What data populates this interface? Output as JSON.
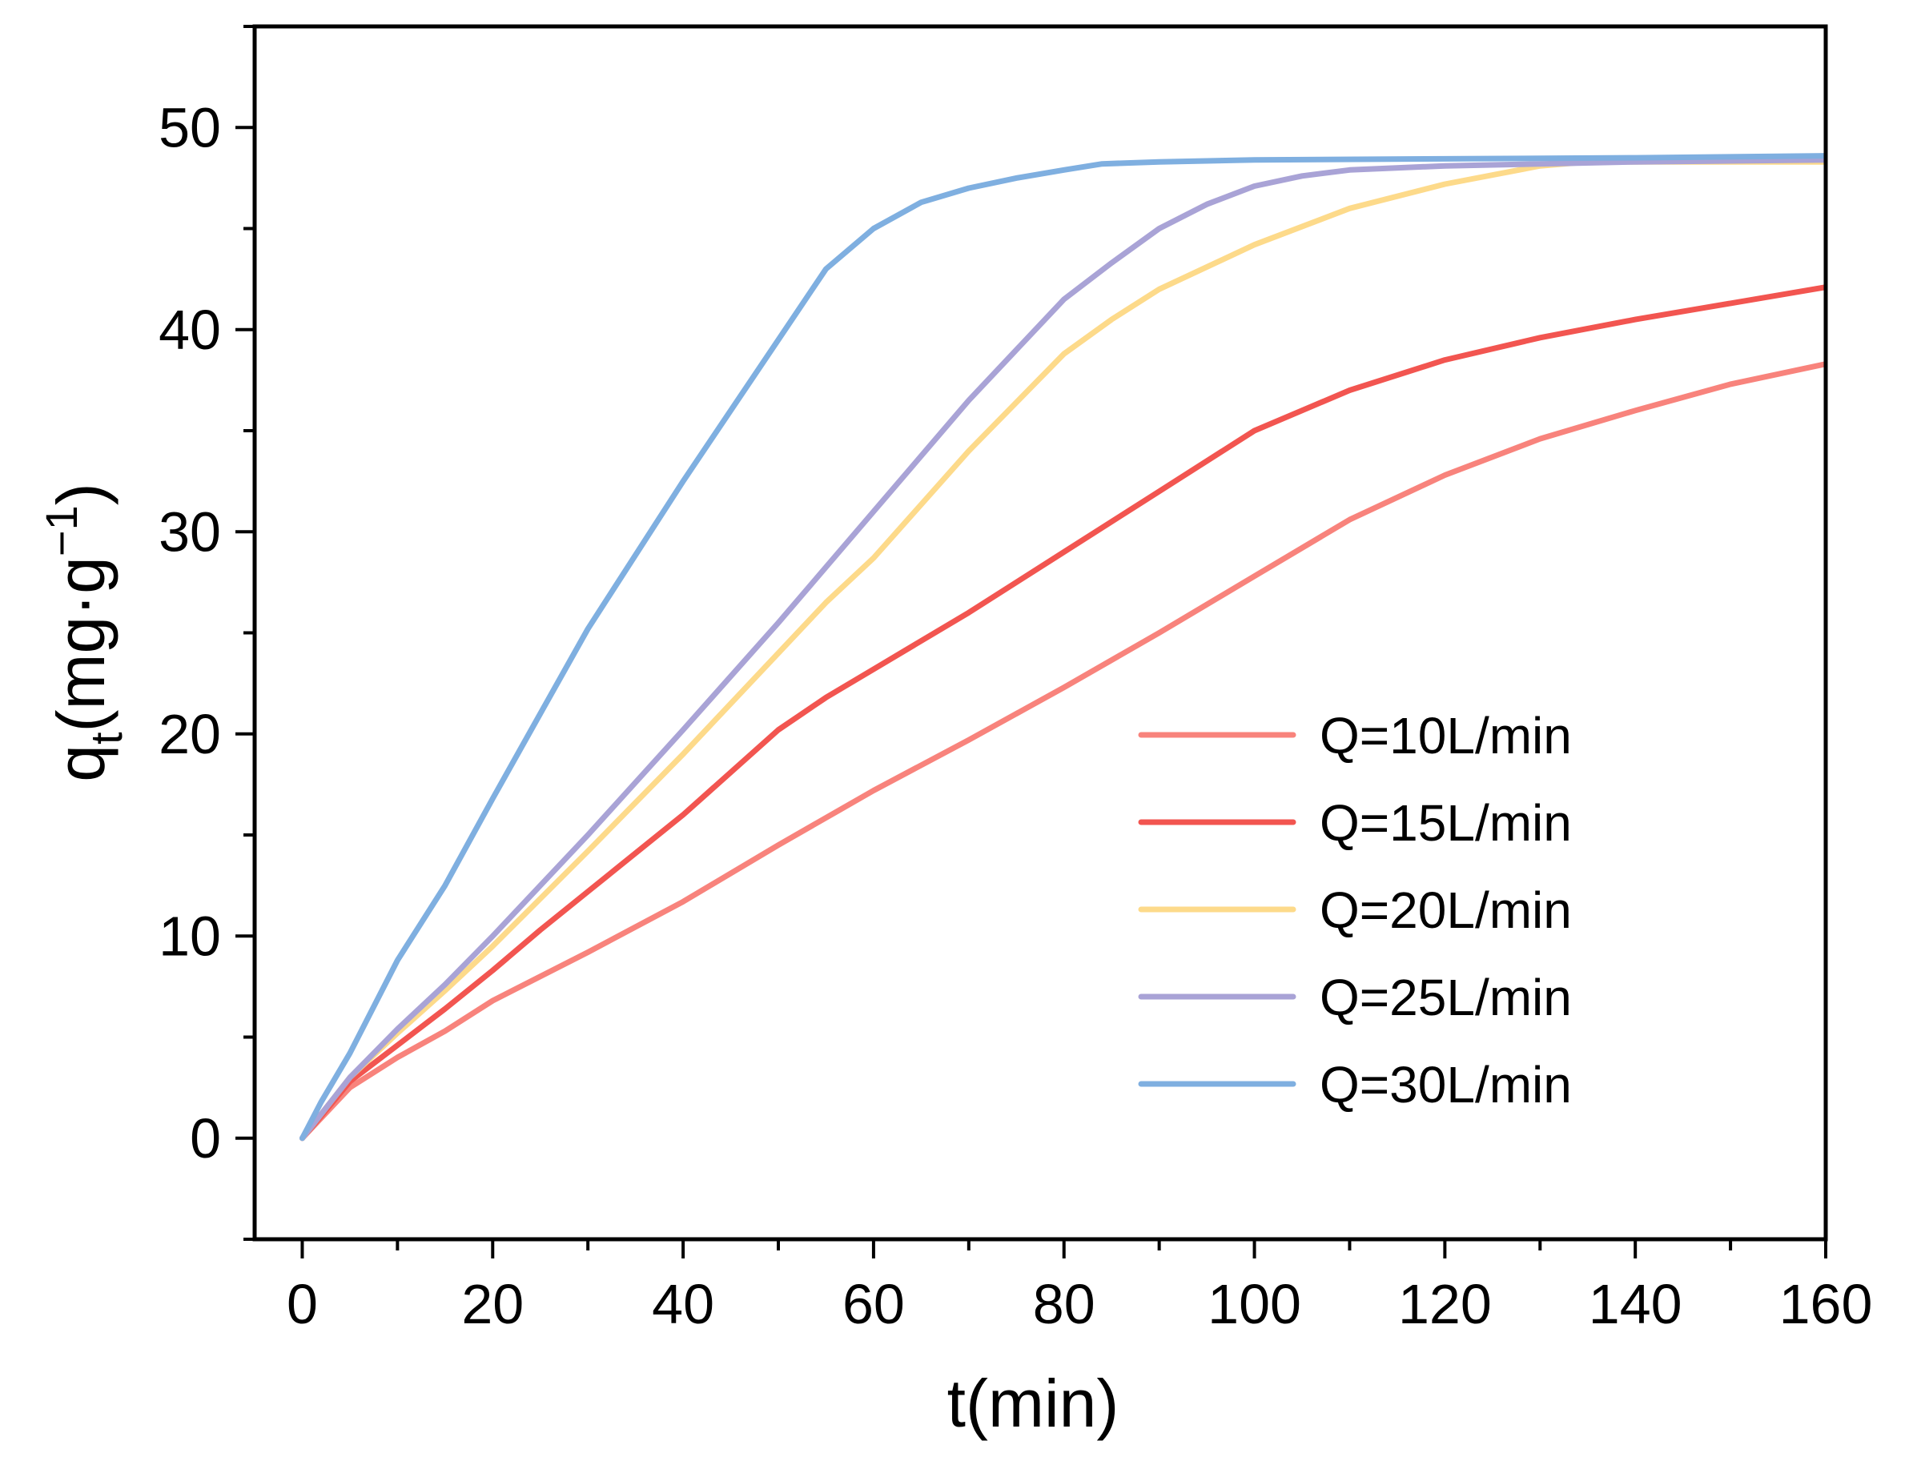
{
  "chart_data": {
    "type": "line",
    "title": "",
    "xlabel": "t(min)",
    "ylabel": {
      "main": "q",
      "sub": "t",
      "unit_start": "(mg·g",
      "sup": "−1",
      "unit_end": ")"
    },
    "xlim": [
      -5,
      160
    ],
    "ylim": [
      -5,
      55
    ],
    "xticks": [
      0,
      20,
      40,
      60,
      80,
      100,
      120,
      140,
      160
    ],
    "yticks": [
      0,
      10,
      20,
      30,
      40,
      50
    ],
    "legend_position": "lower-right",
    "series": [
      {
        "name": "Q=10L/min",
        "color": "#F8837C",
        "x": [
          0,
          2,
          5,
          10,
          15,
          20,
          25,
          30,
          40,
          50,
          60,
          70,
          80,
          90,
          100,
          110,
          120,
          130,
          140,
          150,
          160
        ],
        "y": [
          0,
          1.0,
          2.5,
          4.0,
          5.3,
          6.8,
          8.0,
          9.2,
          11.7,
          14.5,
          17.2,
          19.7,
          22.3,
          25.0,
          27.8,
          30.6,
          32.8,
          34.6,
          36.0,
          37.3,
          38.3
        ]
      },
      {
        "name": "Q=15L/min",
        "color": "#F25550",
        "x": [
          0,
          2,
          5,
          10,
          15,
          20,
          25,
          30,
          40,
          50,
          55,
          60,
          70,
          80,
          90,
          100,
          110,
          120,
          130,
          140,
          150,
          160
        ],
        "y": [
          0,
          1.1,
          2.8,
          4.6,
          6.4,
          8.3,
          10.3,
          12.2,
          16.0,
          20.2,
          21.8,
          23.2,
          26.0,
          29.0,
          32.0,
          35.0,
          37.0,
          38.5,
          39.6,
          40.5,
          41.3,
          42.1
        ]
      },
      {
        "name": "Q=20L/min",
        "color": "#FDDA8A",
        "x": [
          0,
          2,
          5,
          10,
          15,
          20,
          30,
          40,
          50,
          55,
          60,
          70,
          80,
          85,
          90,
          100,
          110,
          120,
          130,
          135,
          140,
          160
        ],
        "y": [
          0,
          1.2,
          3.0,
          5.2,
          7.3,
          9.5,
          14.2,
          19.0,
          24.0,
          26.5,
          28.7,
          34.0,
          38.8,
          40.5,
          42.0,
          44.2,
          46.0,
          47.2,
          48.1,
          48.3,
          48.3,
          48.3
        ]
      },
      {
        "name": "Q=25L/min",
        "color": "#A9A3D6",
        "x": [
          0,
          2,
          5,
          10,
          15,
          20,
          30,
          40,
          50,
          60,
          70,
          80,
          85,
          90,
          95,
          100,
          105,
          110,
          120,
          130,
          140,
          160
        ],
        "y": [
          0,
          1.2,
          3.0,
          5.4,
          7.6,
          10.0,
          15.0,
          20.2,
          25.5,
          31.0,
          36.5,
          41.5,
          43.3,
          45.0,
          46.2,
          47.1,
          47.6,
          47.9,
          48.1,
          48.2,
          48.3,
          48.4
        ]
      },
      {
        "name": "Q=30L/min",
        "color": "#7FAFE0",
        "x": [
          0,
          2,
          5,
          10,
          15,
          20,
          25,
          30,
          40,
          50,
          55,
          60,
          65,
          70,
          75,
          80,
          84,
          90,
          100,
          120,
          140,
          160
        ],
        "y": [
          0,
          1.8,
          4.2,
          8.8,
          12.5,
          16.8,
          21.0,
          25.2,
          32.5,
          39.5,
          43.0,
          45.0,
          46.3,
          47.0,
          47.5,
          47.9,
          48.2,
          48.3,
          48.4,
          48.45,
          48.5,
          48.6
        ]
      }
    ]
  }
}
